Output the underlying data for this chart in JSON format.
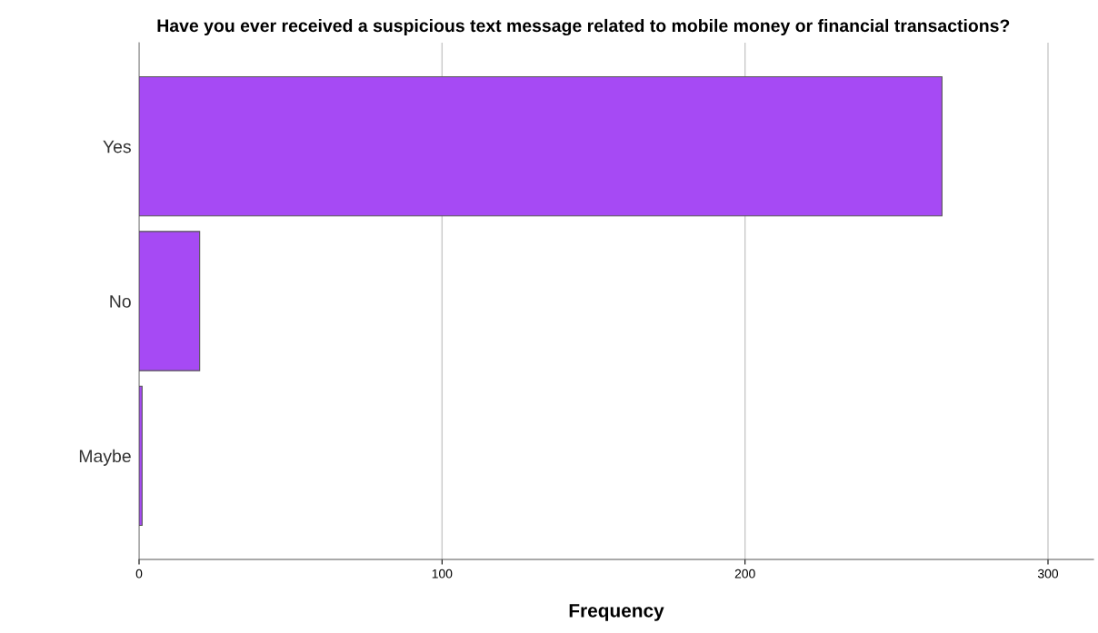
{
  "chart_data": {
    "type": "bar",
    "orientation": "horizontal",
    "title": "Have you ever received a suspicious text message related to mobile money or financial transactions?",
    "xlabel": "Frequency",
    "categories": [
      "Yes",
      "No",
      "Maybe"
    ],
    "values": [
      265,
      20,
      1
    ],
    "color": "#a64af4",
    "xlim": [
      0,
      315
    ],
    "xticks": [
      0,
      100,
      200,
      300
    ],
    "grid": "x"
  }
}
